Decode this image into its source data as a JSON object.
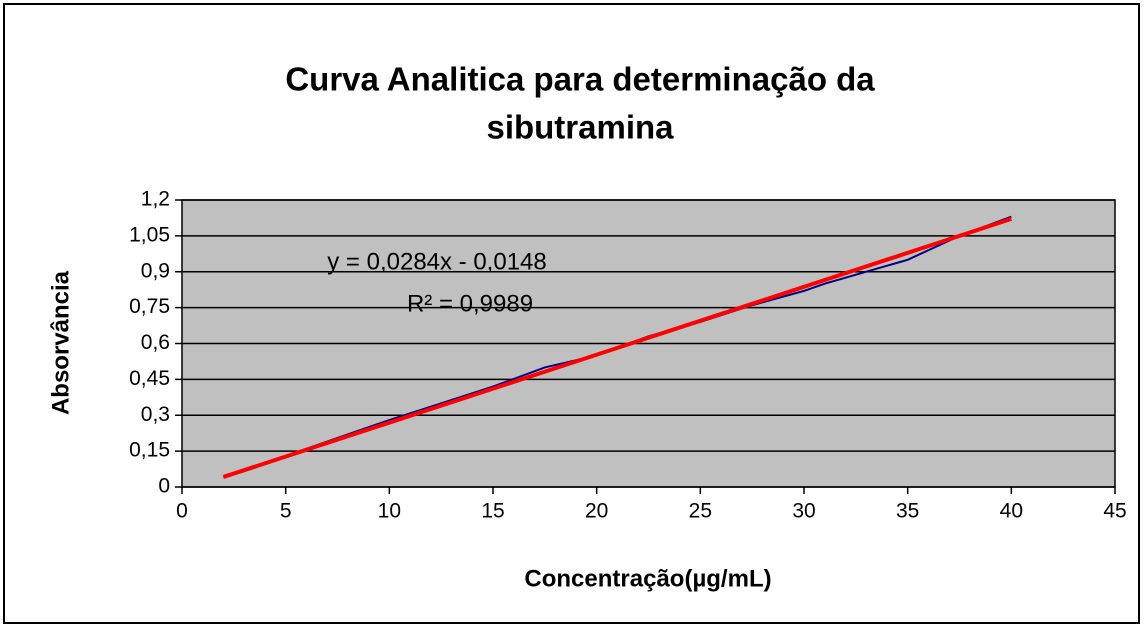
{
  "chart_data": {
    "type": "line",
    "title": [
      "Curva Analitica para determinação da",
      "sibutramina"
    ],
    "x_label": "Concentração(µg/mL)",
    "y_label": "Absorvância",
    "annotations": [
      "y = 0,0284x - 0,0148",
      "R² = 0,9989"
    ],
    "xlim": [
      0,
      45
    ],
    "xticks": [
      0,
      5,
      10,
      15,
      20,
      25,
      30,
      35,
      40,
      45
    ],
    "ylim": [
      0,
      1.2
    ],
    "yticks": [
      0,
      {
        "value": 0.15,
        "label": "0,15"
      },
      {
        "value": 0.3,
        "label": "0,3"
      },
      {
        "value": 0.45,
        "label": "0,45"
      },
      {
        "value": 0.6,
        "label": "0,6"
      },
      {
        "value": 0.75,
        "label": "0,75"
      },
      {
        "value": 0.9,
        "label": "0,9"
      },
      {
        "value": 1.05,
        "label": "1,05"
      },
      {
        "value": 1.2,
        "label": "1,2"
      }
    ],
    "grid": true,
    "plot_background": "#c0c0c0",
    "series": [
      {
        "color": "#000080",
        "x": [
          2,
          3.5,
          5,
          10,
          12.5,
          15,
          17.5,
          20,
          22.5,
          25,
          27.5,
          30,
          31,
          35,
          37.5,
          40
        ],
        "values": [
          0.04,
          0.08,
          0.13,
          0.28,
          0.35,
          0.42,
          0.5,
          0.55,
          0.63,
          0.69,
          0.76,
          0.82,
          0.85,
          0.95,
          1.05,
          1.13
        ]
      },
      {
        "color": "#ff0000",
        "x": [
          2,
          40
        ],
        "values": [
          0.042,
          1.121
        ]
      }
    ]
  }
}
